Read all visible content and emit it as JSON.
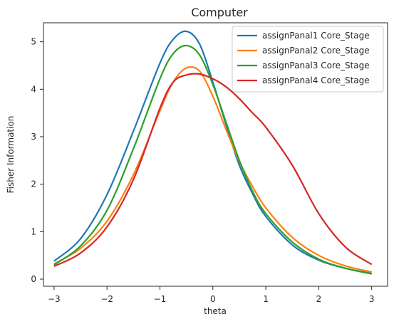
{
  "chart_data": {
    "type": "line",
    "title": "Computer",
    "xlabel": "theta",
    "ylabel": "Fisher Information",
    "xlim": [
      -3.2,
      3.3
    ],
    "ylim": [
      -0.15,
      5.4
    ],
    "xticks": [
      -3,
      -2,
      -1,
      0,
      1,
      2,
      3
    ],
    "yticks": [
      0,
      1,
      2,
      3,
      4,
      5
    ],
    "grid": false,
    "legend_position": "top-right",
    "x": [
      -3.0,
      -2.5,
      -2.0,
      -1.5,
      -1.0,
      -0.75,
      -0.5,
      -0.25,
      0.0,
      0.25,
      0.5,
      0.75,
      1.0,
      1.5,
      2.0,
      2.5,
      3.0
    ],
    "series": [
      {
        "name": "assignPanal1 Core_Stage",
        "color": "#1f77b4",
        "values": [
          0.38,
          0.85,
          1.78,
          3.12,
          4.55,
          5.05,
          5.22,
          4.95,
          4.15,
          3.25,
          2.4,
          1.8,
          1.32,
          0.72,
          0.4,
          0.23,
          0.12
        ]
      },
      {
        "name": "assignPanal2 Core_Stage",
        "color": "#ff7f0e",
        "values": [
          0.32,
          0.65,
          1.22,
          2.2,
          3.55,
          4.15,
          4.45,
          4.38,
          3.85,
          3.15,
          2.48,
          1.95,
          1.5,
          0.88,
          0.5,
          0.28,
          0.15
        ]
      },
      {
        "name": "assignPanal3 Core_Stage",
        "color": "#2ca02c",
        "values": [
          0.3,
          0.7,
          1.45,
          2.75,
          4.22,
          4.75,
          4.92,
          4.72,
          4.1,
          3.3,
          2.5,
          1.85,
          1.38,
          0.78,
          0.42,
          0.23,
          0.11
        ]
      },
      {
        "name": "assignPanal4 Core_Stage",
        "color": "#d62728",
        "values": [
          0.27,
          0.55,
          1.1,
          2.1,
          3.6,
          4.15,
          4.3,
          4.32,
          4.22,
          4.05,
          3.8,
          3.5,
          3.2,
          2.4,
          1.38,
          0.68,
          0.31
        ]
      }
    ]
  }
}
